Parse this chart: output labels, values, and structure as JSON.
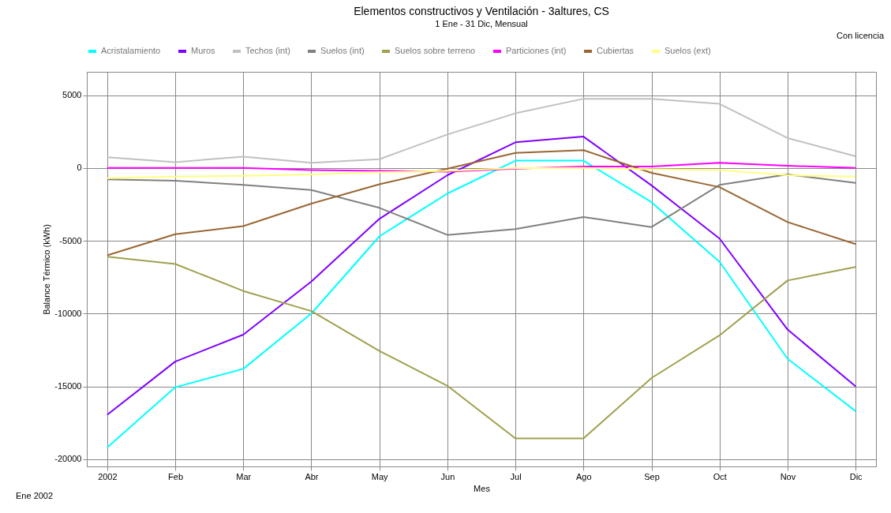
{
  "chart_data": {
    "type": "line",
    "title": "Elementos constructivos y Ventilación - 3altures, CS",
    "subtitle": "1 Ene - 31 Dic, Mensual",
    "xlabel": "Mes",
    "ylabel": "Balance Térmico (kWh)",
    "annotations": [
      "Con licencia",
      "Ene 2002"
    ],
    "categories": [
      "2002",
      "Feb",
      "Mar",
      "Abr",
      "May",
      "Jun",
      "Jul",
      "Ago",
      "Sep",
      "Oct",
      "Nov",
      "Dic"
    ],
    "series": [
      {
        "name": "Acristalamiento",
        "color": "#00ffff",
        "values": [
          -19200,
          -15060,
          -13800,
          -10000,
          -4700,
          -1760,
          500,
          500,
          -2350,
          -6450,
          -13100,
          -16700
        ]
      },
      {
        "name": "Muros",
        "color": "#8000ff",
        "values": [
          -16950,
          -13300,
          -11450,
          -7800,
          -3500,
          -500,
          1760,
          2150,
          -1200,
          -4850,
          -11100,
          -15000
        ]
      },
      {
        "name": "Techos (int)",
        "color": "#c0c0c0",
        "values": [
          730,
          400,
          780,
          350,
          600,
          2300,
          3750,
          4750,
          4750,
          4400,
          2050,
          800
        ]
      },
      {
        "name": "Suelos (int)",
        "color": "#808080",
        "values": [
          -780,
          -880,
          -1170,
          -1520,
          -2740,
          -4600,
          -4200,
          -3370,
          -4060,
          -1170,
          -440,
          -1030
        ]
      },
      {
        "name": "Suelos sobre terreno",
        "color": "#a0a050",
        "values": [
          -6100,
          -6600,
          -8450,
          -9830,
          -12570,
          -14960,
          -18580,
          -18580,
          -14430,
          -11500,
          -7730,
          -6800
        ]
      },
      {
        "name": "Particiones (int)",
        "color": "#ff00ff",
        "values": [
          0,
          0,
          0,
          -150,
          -200,
          -250,
          -50,
          100,
          100,
          350,
          150,
          0
        ]
      },
      {
        "name": "Cubiertas",
        "color": "#996633",
        "values": [
          -6000,
          -4550,
          -4000,
          -2450,
          -1120,
          -50,
          1030,
          1220,
          -340,
          -1320,
          -3720,
          -5230
        ]
      },
      {
        "name": "Suelos (ext)",
        "color": "#ffff80",
        "values": [
          -700,
          -600,
          -540,
          -440,
          -300,
          -200,
          -10,
          0,
          -100,
          -150,
          -500,
          -600
        ]
      }
    ],
    "ylim": [
      -20500,
      6600
    ],
    "yticks": [
      -20000,
      -15000,
      -10000,
      -5000,
      0,
      5000
    ],
    "grid": true,
    "legend": "top"
  }
}
